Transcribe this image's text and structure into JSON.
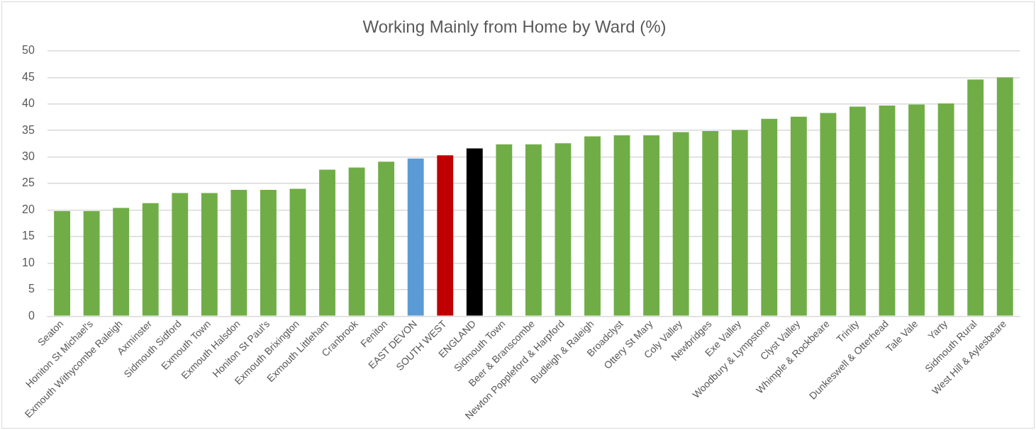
{
  "chart_data": {
    "type": "bar",
    "title": "Working Mainly from Home by Ward (%)",
    "categories": [
      "Seaton",
      "Honiton St Michael's",
      "Exmouth Withycombe Raleigh",
      "Axminster",
      "Sidmouth Sidford",
      "Exmouth Town",
      "Exmouth Halsdon",
      "Honiton St Paul's",
      "Exmouth Brixington",
      "Exmouth Littleham",
      "Cranbrook",
      "Feniton",
      "EAST DEVON",
      "SOUTH WEST",
      "ENGLAND",
      "Sidmouth Town",
      "Beer & Branscombe",
      "Newton Poppleford & Harpford",
      "Budleigh & Raleigh",
      "Broadclyst",
      "Ottery St Mary",
      "Coly Valley",
      "Newbridges",
      "Exe Valley",
      "Woodbury & Lympstone",
      "Clyst Valley",
      "Whimple & Rockbeare",
      "Trinity",
      "Dunkeswell & Otterhead",
      "Tale Vale",
      "Yarty",
      "Sidmouth Rural",
      "West Hill & Aylesbeare"
    ],
    "values": [
      19.8,
      19.8,
      20.4,
      21.3,
      23.2,
      23.2,
      23.8,
      23.8,
      24.0,
      27.6,
      28.0,
      29.1,
      29.7,
      30.3,
      31.6,
      32.4,
      32.4,
      32.6,
      33.9,
      34.1,
      34.1,
      34.7,
      34.9,
      35.1,
      37.2,
      37.6,
      38.3,
      39.5,
      39.7,
      39.9,
      40.1,
      44.6,
      45.0
    ],
    "colors": [
      "#70ad47",
      "#70ad47",
      "#70ad47",
      "#70ad47",
      "#70ad47",
      "#70ad47",
      "#70ad47",
      "#70ad47",
      "#70ad47",
      "#70ad47",
      "#70ad47",
      "#70ad47",
      "#5b9bd5",
      "#c00000",
      "#000000",
      "#70ad47",
      "#70ad47",
      "#70ad47",
      "#70ad47",
      "#70ad47",
      "#70ad47",
      "#70ad47",
      "#70ad47",
      "#70ad47",
      "#70ad47",
      "#70ad47",
      "#70ad47",
      "#70ad47",
      "#70ad47",
      "#70ad47",
      "#70ad47",
      "#70ad47",
      "#70ad47"
    ],
    "ylim": [
      0,
      50
    ],
    "yticks": [
      0,
      5,
      10,
      15,
      20,
      25,
      30,
      35,
      40,
      45,
      50
    ],
    "grid": "y",
    "legend": false
  }
}
